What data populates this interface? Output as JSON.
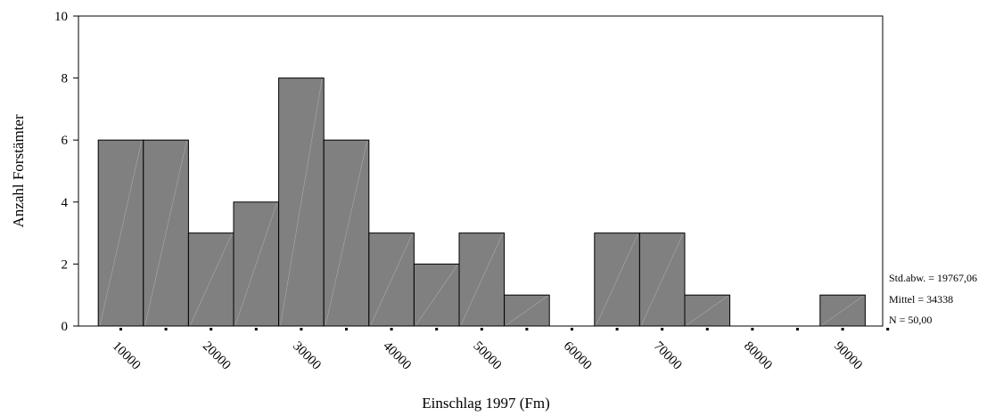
{
  "chart_data": {
    "type": "bar",
    "subtype": "histogram",
    "xlabel": "Einschlag 1997 (Fm)",
    "ylabel": "Anzahl Forstämter",
    "ylim": [
      0,
      10
    ],
    "yticks": [
      0,
      2,
      4,
      6,
      8,
      10
    ],
    "xticks": [
      10000,
      20000,
      30000,
      40000,
      50000,
      60000,
      70000,
      80000,
      90000
    ],
    "xtick_labels": [
      "10000",
      "20000",
      "30000",
      "40000",
      "50000",
      "60000",
      "70000",
      "80000",
      "90000"
    ],
    "ytick_labels": [
      "0",
      "2",
      "4",
      "6",
      "8",
      "10"
    ],
    "bin_width": 5000,
    "bins": [
      {
        "center": 10000,
        "value": 6
      },
      {
        "center": 15000,
        "value": 6
      },
      {
        "center": 20000,
        "value": 3
      },
      {
        "center": 25000,
        "value": 4
      },
      {
        "center": 30000,
        "value": 8
      },
      {
        "center": 35000,
        "value": 6
      },
      {
        "center": 40000,
        "value": 3
      },
      {
        "center": 45000,
        "value": 2
      },
      {
        "center": 50000,
        "value": 3
      },
      {
        "center": 55000,
        "value": 1
      },
      {
        "center": 60000,
        "value": 0
      },
      {
        "center": 65000,
        "value": 3
      },
      {
        "center": 70000,
        "value": 3
      },
      {
        "center": 75000,
        "value": 1
      },
      {
        "center": 80000,
        "value": 0
      },
      {
        "center": 85000,
        "value": 0
      },
      {
        "center": 90000,
        "value": 1
      }
    ],
    "xlim": [
      5000,
      95000
    ],
    "grid": false,
    "bar_color": "#808080",
    "stats": {
      "std": "Std.abw. = 19767,06",
      "mean": "Mittel = 34338",
      "n": "N = 50,00"
    }
  }
}
